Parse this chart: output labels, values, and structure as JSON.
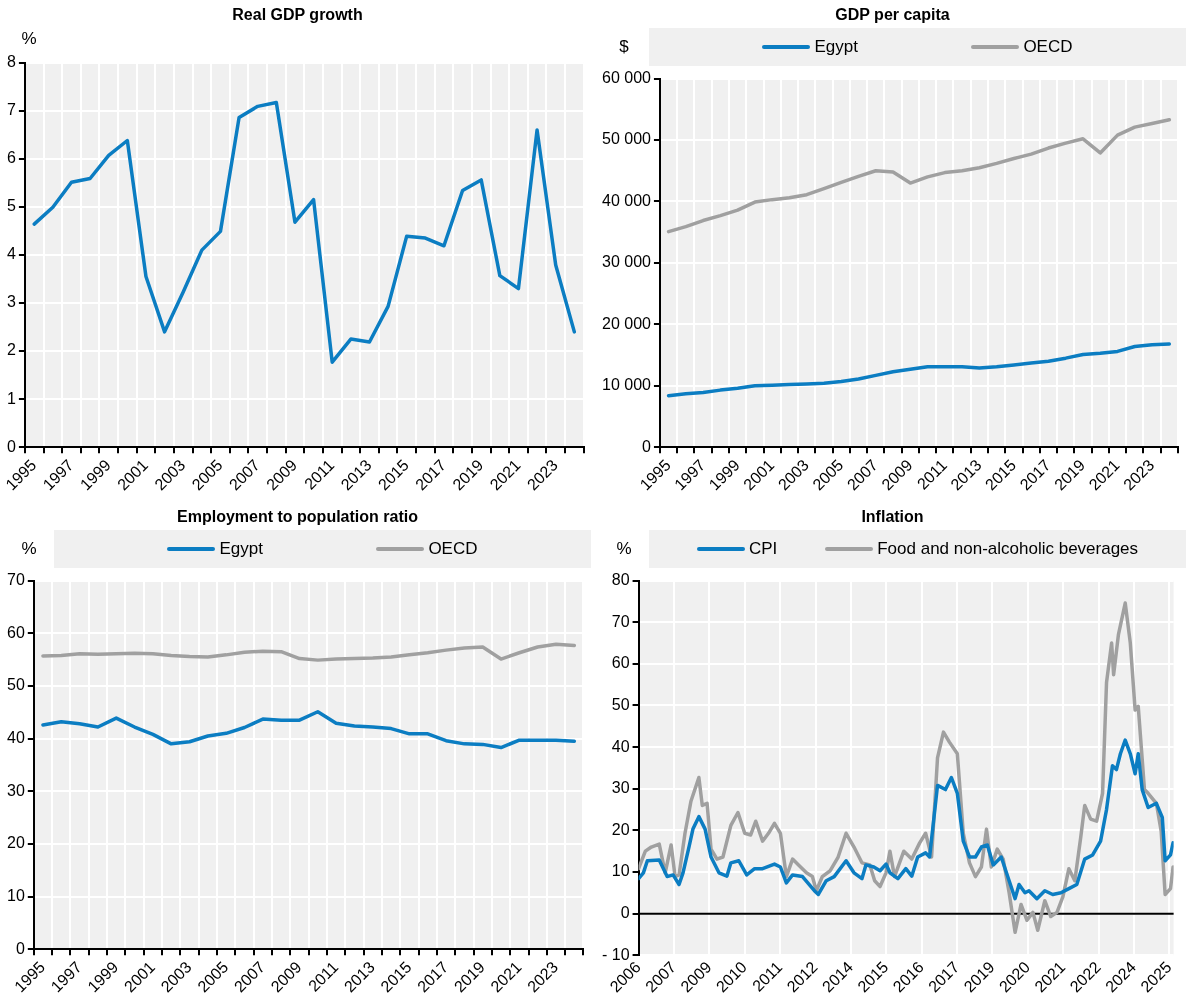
{
  "chart_data": [
    {
      "type": "line",
      "title": "Real GDP growth",
      "ylabel": "%",
      "categories": [
        "1995",
        null,
        "1997",
        null,
        "1999",
        null,
        "2001",
        null,
        "2003",
        null,
        "2005",
        null,
        "2007",
        null,
        "2009",
        null,
        "2011",
        null,
        "2013",
        null,
        "2015",
        null,
        "2017",
        null,
        "2019",
        null,
        "2021",
        null,
        "2023",
        null
      ],
      "ylim": [
        0,
        8
      ],
      "yticks": [
        0,
        1,
        2,
        3,
        4,
        5,
        6,
        7,
        8
      ],
      "grid": true,
      "series": [
        {
          "color": "#0b7dc2",
          "values": [
            4.64,
            4.99,
            5.51,
            5.59,
            6.07,
            6.38,
            3.55,
            2.4,
            3.23,
            4.1,
            4.49,
            6.86,
            7.09,
            7.17,
            4.68,
            5.15,
            1.77,
            2.25,
            2.19,
            2.93,
            4.39,
            4.35,
            4.19,
            5.34,
            5.56,
            3.57,
            3.3,
            6.6,
            3.79,
            2.4
          ]
        }
      ]
    },
    {
      "type": "line",
      "title": "GDP per capita",
      "ylabel": "$",
      "legend": "top",
      "categories": [
        "1995",
        null,
        "1997",
        null,
        "1999",
        null,
        "2001",
        null,
        "2003",
        null,
        "2005",
        null,
        "2007",
        null,
        "2009",
        null,
        "2011",
        null,
        "2013",
        null,
        "2015",
        null,
        "2017",
        null,
        "2019",
        null,
        "2021",
        null,
        "2023",
        null
      ],
      "ylim": [
        0,
        60000
      ],
      "yticks": [
        {
          "value": 0,
          "label": "0"
        },
        {
          "value": 10000,
          "label": "10 000"
        },
        {
          "value": 20000,
          "label": "20 000"
        },
        {
          "value": 30000,
          "label": "30 000"
        },
        {
          "value": 40000,
          "label": "40 000"
        },
        {
          "value": 50000,
          "label": "50 000"
        },
        {
          "value": 60000,
          "label": "60 000"
        }
      ],
      "grid": true,
      "series": [
        {
          "name": "Egypt",
          "color": "#0b7dc2",
          "values": [
            8400,
            8700,
            8900,
            9300,
            9600,
            10000,
            10100,
            10200,
            10300,
            10400,
            10700,
            11100,
            11700,
            12300,
            12700,
            13100,
            13100,
            13100,
            12900,
            13100,
            13400,
            13700,
            14000,
            14500,
            15100,
            15300,
            15600,
            16400,
            16700,
            16800
          ]
        },
        {
          "name": "OECD",
          "color": "#a0a0a0",
          "values": [
            35100,
            35900,
            36900,
            37700,
            38600,
            39900,
            40300,
            40600,
            41100,
            42100,
            43100,
            44100,
            45000,
            44800,
            43000,
            44000,
            44700,
            45000,
            45500,
            46200,
            47000,
            47700,
            48700,
            49500,
            50200,
            47900,
            50800,
            52100,
            52700,
            53300
          ]
        }
      ]
    },
    {
      "type": "line",
      "title": "Employment to population ratio",
      "ylabel": "%",
      "legend": "top",
      "categories": [
        "1995",
        null,
        "1997",
        null,
        "1999",
        null,
        "2001",
        null,
        "2003",
        null,
        "2005",
        null,
        "2007",
        null,
        "2009",
        null,
        "2011",
        null,
        "2013",
        null,
        "2015",
        null,
        "2017",
        null,
        "2019",
        null,
        "2021",
        null,
        "2023",
        null
      ],
      "ylim": [
        0,
        70
      ],
      "yticks": [
        0,
        10,
        20,
        30,
        40,
        50,
        60,
        70
      ],
      "grid": true,
      "series": [
        {
          "name": "Egypt",
          "color": "#0b7dc2",
          "values": [
            42.6,
            43.2,
            42.8,
            42.2,
            43.9,
            42.2,
            40.8,
            39.0,
            39.4,
            40.5,
            41.0,
            42.1,
            43.7,
            43.5,
            43.5,
            45.1,
            42.9,
            42.4,
            42.2,
            41.9,
            40.9,
            40.9,
            39.6,
            39.0,
            38.9,
            38.3,
            39.7,
            39.7,
            39.7,
            39.5
          ]
        },
        {
          "name": "OECD",
          "color": "#a0a0a0",
          "values": [
            55.7,
            55.8,
            56.1,
            56.0,
            56.1,
            56.2,
            56.1,
            55.8,
            55.6,
            55.5,
            55.9,
            56.4,
            56.6,
            56.5,
            55.2,
            54.9,
            55.1,
            55.2,
            55.3,
            55.5,
            55.9,
            56.3,
            56.8,
            57.2,
            57.4,
            55.1,
            56.3,
            57.4,
            57.9,
            57.7
          ]
        }
      ]
    },
    {
      "type": "line",
      "title": "Inflation",
      "ylabel": "%",
      "legend": "top",
      "xlim": [
        2006.1,
        2025.0
      ],
      "xticks": [
        {
          "value": 2006.1,
          "label": "2006"
        },
        {
          "value": 2007.35,
          "label": "2007"
        },
        {
          "value": 2008.6,
          "label": "2009"
        },
        {
          "value": 2009.85,
          "label": "2010"
        },
        {
          "value": 2011.1,
          "label": "2011"
        },
        {
          "value": 2012.35,
          "label": "2012"
        },
        {
          "value": 2013.6,
          "label": "2014"
        },
        {
          "value": 2014.85,
          "label": "2015"
        },
        {
          "value": 2016.1,
          "label": "2016"
        },
        {
          "value": 2017.35,
          "label": "2017"
        },
        {
          "value": 2018.6,
          "label": "2019"
        },
        {
          "value": 2019.85,
          "label": "2020"
        },
        {
          "value": 2021.1,
          "label": "2021"
        },
        {
          "value": 2022.35,
          "label": "2022"
        },
        {
          "value": 2023.6,
          "label": "2024"
        },
        {
          "value": 2024.85,
          "label": "2025"
        }
      ],
      "ylim": [
        -10,
        80
      ],
      "yticks": [
        {
          "value": -10,
          "label": "- 10"
        },
        0,
        10,
        20,
        30,
        40,
        50,
        60,
        70,
        80
      ],
      "grid": true,
      "ref_lines": [
        {
          "axis": "y",
          "value": 0,
          "color": "#000000"
        }
      ],
      "series": [
        {
          "name": "CPI",
          "color": "#0b7dc2",
          "x": [
            2006.1,
            2006.27,
            2006.41,
            2006.83,
            2007.11,
            2007.32,
            2007.53,
            2007.67,
            2007.88,
            2008.02,
            2008.23,
            2008.45,
            2008.66,
            2008.94,
            2009.22,
            2009.36,
            2009.64,
            2009.92,
            2010.2,
            2010.48,
            2010.9,
            2011.11,
            2011.32,
            2011.54,
            2011.89,
            2012.31,
            2012.45,
            2012.73,
            2013.01,
            2013.43,
            2013.71,
            2013.99,
            2014.13,
            2014.41,
            2014.63,
            2014.84,
            2014.98,
            2015.26,
            2015.54,
            2015.75,
            2015.96,
            2016.24,
            2016.38,
            2016.66,
            2016.94,
            2017.15,
            2017.36,
            2017.57,
            2017.79,
            2018.0,
            2018.21,
            2018.42,
            2018.63,
            2018.91,
            2019.19,
            2019.4,
            2019.54,
            2019.75,
            2019.89,
            2020.17,
            2020.45,
            2020.73,
            2021.02,
            2021.3,
            2021.58,
            2021.86,
            2022.14,
            2022.42,
            2022.63,
            2022.84,
            2022.98,
            2023.12,
            2023.29,
            2023.47,
            2023.64,
            2023.75,
            2023.89,
            2024.1,
            2024.39,
            2024.6,
            2024.7,
            2024.89,
            2024.98
          ],
          "values": [
            8.4,
            9.8,
            12.7,
            12.9,
            8.9,
            9.3,
            7.0,
            9.8,
            16.0,
            20.3,
            23.3,
            20.3,
            13.6,
            9.8,
            9.0,
            12.2,
            12.7,
            9.3,
            10.8,
            10.8,
            11.9,
            11.2,
            7.4,
            9.3,
            8.9,
            5.5,
            4.6,
            7.9,
            8.9,
            12.7,
            9.8,
            8.4,
            11.7,
            11.2,
            10.3,
            11.9,
            9.8,
            8.4,
            10.8,
            9.0,
            13.6,
            14.6,
            13.6,
            30.8,
            29.8,
            32.7,
            28.9,
            17.4,
            13.6,
            13.6,
            16.0,
            16.5,
            11.7,
            13.6,
            7.9,
            3.6,
            7.0,
            5.0,
            5.5,
            3.6,
            5.5,
            4.6,
            5.0,
            6.0,
            7.0,
            13.1,
            14.1,
            17.4,
            25.0,
            35.5,
            34.6,
            38.4,
            41.7,
            38.4,
            33.6,
            38.4,
            29.8,
            25.5,
            26.5,
            23.1,
            12.7,
            14.1,
            17.0
          ]
        },
        {
          "name": "Food and non-alcoholic beverages",
          "color": "#a0a0a0",
          "x": [
            2006.1,
            2006.34,
            2006.55,
            2006.83,
            2007.04,
            2007.25,
            2007.39,
            2007.53,
            2007.74,
            2007.95,
            2008.23,
            2008.35,
            2008.52,
            2008.66,
            2008.87,
            2009.08,
            2009.36,
            2009.61,
            2009.85,
            2010.06,
            2010.24,
            2010.48,
            2010.69,
            2010.9,
            2011.11,
            2011.32,
            2011.54,
            2011.75,
            2012.03,
            2012.24,
            2012.38,
            2012.59,
            2012.87,
            2013.15,
            2013.43,
            2013.71,
            2013.99,
            2014.27,
            2014.44,
            2014.63,
            2014.84,
            2014.98,
            2015.14,
            2015.47,
            2015.75,
            2016.03,
            2016.24,
            2016.45,
            2016.66,
            2016.87,
            2017.08,
            2017.36,
            2017.57,
            2017.79,
            2018.0,
            2018.21,
            2018.39,
            2018.56,
            2018.77,
            2018.98,
            2019.19,
            2019.4,
            2019.61,
            2019.82,
            2020.03,
            2020.2,
            2020.45,
            2020.66,
            2020.88,
            2021.09,
            2021.3,
            2021.51,
            2021.72,
            2021.86,
            2022.07,
            2022.28,
            2022.49,
            2022.63,
            2022.81,
            2022.88,
            2023.05,
            2023.29,
            2023.47,
            2023.64,
            2023.75,
            2023.97,
            2024.1,
            2024.39,
            2024.56,
            2024.7,
            2024.89,
            2024.98
          ],
          "values": [
            10.8,
            15.0,
            16.0,
            16.7,
            9.8,
            16.5,
            8.9,
            9.3,
            19.3,
            27.0,
            32.7,
            26.0,
            26.5,
            15.5,
            13.1,
            13.6,
            21.2,
            24.3,
            19.3,
            18.9,
            22.2,
            17.4,
            19.3,
            21.7,
            19.3,
            8.9,
            13.1,
            11.7,
            9.8,
            8.9,
            5.5,
            8.9,
            10.3,
            13.6,
            19.3,
            16.0,
            12.2,
            11.7,
            7.9,
            6.5,
            9.8,
            15.0,
            8.9,
            15.0,
            13.1,
            17.0,
            19.3,
            13.6,
            37.4,
            43.6,
            41.2,
            38.4,
            19.3,
            12.2,
            8.9,
            11.2,
            20.3,
            11.2,
            15.5,
            13.1,
            5.0,
            -4.5,
            2.2,
            -1.6,
            0.3,
            -4.0,
            3.1,
            -0.7,
            0.3,
            4.1,
            10.8,
            7.9,
            18.4,
            26.0,
            22.7,
            22.2,
            28.9,
            55.5,
            65.0,
            57.4,
            67.0,
            74.6,
            65.0,
            48.9,
            49.8,
            29.8,
            28.9,
            26.5,
            19.8,
            4.6,
            6.0,
            11.2
          ]
        }
      ]
    }
  ]
}
